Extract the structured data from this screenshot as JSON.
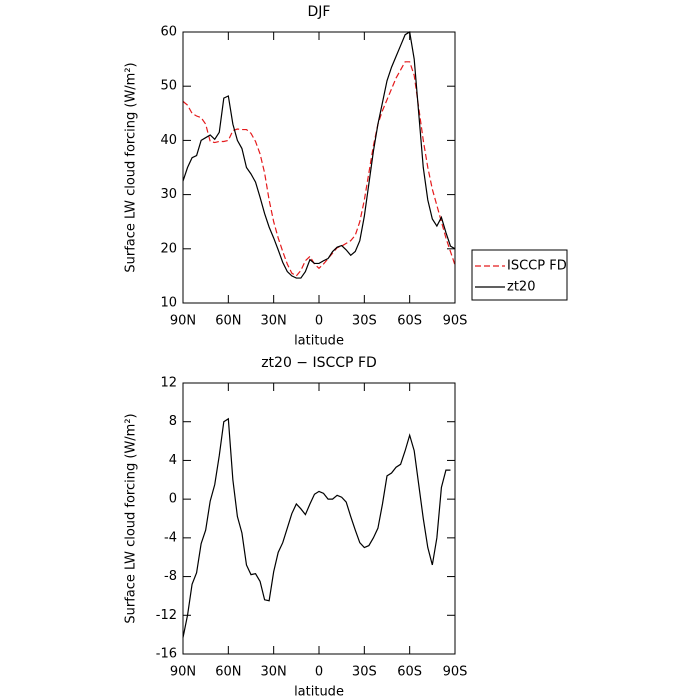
{
  "chart_data": [
    {
      "type": "line",
      "title": "DJF",
      "x_label": "latitude",
      "y_label": "Surface LW cloud forcing (W/m²)",
      "x": [
        90,
        87,
        84,
        81,
        78,
        75,
        72,
        69,
        66,
        63,
        60,
        57,
        54,
        51,
        48,
        45,
        42,
        39,
        36,
        33,
        30,
        27,
        24,
        21,
        18,
        15,
        12,
        9,
        6,
        3,
        0,
        -3,
        -6,
        -9,
        -12,
        -15,
        -18,
        -21,
        -24,
        -27,
        -30,
        -33,
        -36,
        -39,
        -42,
        -45,
        -48,
        -51,
        -54,
        -57,
        -60,
        -63,
        -66,
        -69,
        -72,
        -75,
        -78,
        -81,
        -84,
        -87,
        -90
      ],
      "series": [
        {
          "name": "ISCCP FD",
          "color": "#e41a1c",
          "dashed": true,
          "values": [
            47.2,
            46.5,
            45,
            44.5,
            44.2,
            43,
            39.8,
            39.6,
            39.8,
            39.8,
            40,
            41.8,
            42.1,
            42,
            42,
            41.3,
            39.8,
            37.5,
            34,
            29,
            25,
            22,
            19.5,
            17.2,
            15.5,
            15,
            16,
            17.8,
            18.6,
            17.2,
            16.4,
            17.2,
            18.2,
            19.2,
            20.2,
            20.5,
            21,
            21.5,
            22.5,
            25,
            29,
            34,
            39,
            43,
            45.5,
            47.5,
            49.5,
            51.5,
            53,
            54.5,
            54.5,
            52,
            46,
            40,
            35,
            31,
            28,
            25,
            22,
            19.5,
            17
          ]
        },
        {
          "name": "zt20",
          "color": "#000000",
          "dashed": false,
          "values": [
            32.5,
            35,
            36.8,
            37.2,
            40,
            40.5,
            41,
            40.2,
            41.5,
            47.8,
            48.2,
            43,
            40,
            38.5,
            35,
            33.8,
            32.3,
            29.5,
            26.5,
            24,
            22,
            19.8,
            17.5,
            15.8,
            15,
            14.6,
            14.6,
            15.8,
            18,
            17.3,
            17.3,
            17.8,
            18.2,
            19.5,
            20.3,
            20.6,
            19.8,
            18.8,
            19.5,
            21.5,
            26,
            32,
            38,
            43,
            47,
            51,
            53.5,
            55.5,
            57.5,
            59.5,
            60,
            55,
            45,
            35,
            29,
            25.5,
            24.2,
            25.8,
            23,
            20.5,
            20
          ]
        }
      ],
      "xlim": [
        90,
        -90
      ],
      "xticks": [
        {
          "value": 90,
          "label": "90N"
        },
        {
          "value": 60,
          "label": "60N"
        },
        {
          "value": 30,
          "label": "30N"
        },
        0,
        {
          "value": -30,
          "label": "30S"
        },
        {
          "value": -60,
          "label": "60S"
        },
        {
          "value": -90,
          "label": "90S"
        }
      ],
      "ylim": [
        10,
        60
      ],
      "yticks": [
        10,
        20,
        30,
        40,
        50,
        60
      ],
      "legend": "outside-right"
    },
    {
      "type": "line",
      "title": "zt20 − ISCCP FD",
      "x_label": "latitude",
      "y_label": "Surface LW cloud forcing (W/m²)",
      "x": [
        90,
        87,
        84,
        81,
        78,
        75,
        72,
        69,
        66,
        63,
        60,
        57,
        54,
        51,
        48,
        45,
        42,
        39,
        36,
        33,
        30,
        27,
        24,
        21,
        18,
        15,
        12,
        9,
        6,
        3,
        0,
        -3,
        -6,
        -9,
        -12,
        -15,
        -18,
        -21,
        -24,
        -27,
        -30,
        -33,
        -36,
        -39,
        -42,
        -45,
        -48,
        -51,
        -54,
        -57,
        -60,
        -63,
        -66,
        -69,
        -72,
        -75,
        -78,
        -81,
        -84,
        -87,
        -90
      ],
      "series": [
        {
          "color": "#000000",
          "dashed": false,
          "values": [
            -14.3,
            -12,
            -8.8,
            -7.6,
            -4.6,
            -3.2,
            -0.2,
            1.5,
            4.5,
            8,
            8.3,
            2,
            -1.8,
            -3.5,
            -6.8,
            -7.8,
            -7.7,
            -8.5,
            -10.4,
            -10.5,
            -7.5,
            -5.5,
            -4.5,
            -3,
            -1.5,
            -0.5,
            -1,
            -1.6,
            -0.5,
            0.5,
            0.8,
            0.6,
            0,
            0,
            0.4,
            0.2,
            -0.3,
            -1.8,
            -3.2,
            -4.5,
            -5,
            -4.8,
            -4,
            -3,
            -0.5,
            2.4,
            2.7,
            3.3,
            3.6,
            5,
            6.6,
            5,
            1.5,
            -2,
            -5,
            -6.8,
            -4,
            1.2,
            3,
            3,
            null
          ]
        }
      ],
      "xlim": [
        90,
        -90
      ],
      "xticks": [
        {
          "value": 90,
          "label": "90N"
        },
        {
          "value": 60,
          "label": "60N"
        },
        {
          "value": 30,
          "label": "30N"
        },
        0,
        {
          "value": -30,
          "label": "30S"
        },
        {
          "value": -60,
          "label": "60S"
        },
        {
          "value": -90,
          "label": "90S"
        }
      ],
      "ylim": [
        -16,
        12
      ],
      "yticks": [
        -16,
        -12,
        -8,
        -4,
        0,
        4,
        8,
        12
      ]
    }
  ]
}
